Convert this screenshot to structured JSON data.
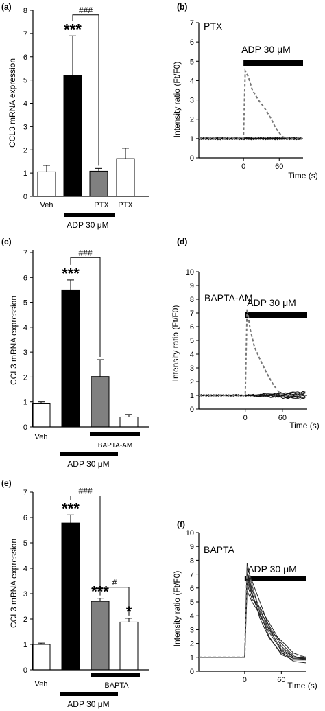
{
  "chart_data": [
    {
      "panel": "(a)",
      "type": "bar",
      "ylabel": "CCL3 mRNA expression",
      "ylim": [
        0,
        8
      ],
      "yticks": [
        0,
        1,
        2,
        3,
        4,
        5,
        6,
        7,
        8
      ],
      "bars": [
        {
          "value": 1.05,
          "error": 0.28,
          "fill": "#ffffff"
        },
        {
          "value": 5.2,
          "error": 1.7,
          "fill": "#000000",
          "sig": "***"
        },
        {
          "value": 1.08,
          "error": 0.12,
          "fill": "#808080"
        },
        {
          "value": 1.62,
          "error": 0.45,
          "fill": "#ffffff"
        }
      ],
      "category_labels": [
        {
          "text": "Veh",
          "bar": 0
        },
        {
          "text": "PTX",
          "bar": 2
        },
        {
          "text": "PTX",
          "bar": 3
        }
      ],
      "brackets": [
        {
          "from": 1,
          "to": 2,
          "label": "###",
          "y": 7.8
        }
      ],
      "condition_bars": [
        {
          "label": "ADP 30 μM",
          "from": 1,
          "to": 2
        }
      ]
    },
    {
      "panel": "(b)",
      "type": "line",
      "label": "PTX",
      "ylabel": "Intensity ratio (Ft/F0)",
      "xlabel": "Time (s)",
      "ylim": [
        0,
        7
      ],
      "xlim": [
        -75,
        100
      ],
      "yticks": [
        0,
        1,
        2,
        3,
        4,
        5,
        6,
        7
      ],
      "xticks": [
        0,
        60
      ],
      "stimulus": {
        "label": "ADP 30 μM",
        "start": 0,
        "end": 100
      },
      "dashed_control": [
        [
          -75,
          1.02
        ],
        [
          0,
          1.02
        ],
        [
          3,
          4.5
        ],
        [
          8,
          4.2
        ],
        [
          15,
          3.5
        ],
        [
          25,
          3.0
        ],
        [
          35,
          2.6
        ],
        [
          45,
          2.1
        ],
        [
          55,
          1.5
        ],
        [
          65,
          1.1
        ],
        [
          75,
          1.0
        ],
        [
          100,
          1.0
        ]
      ],
      "traces_baseline": 1.0,
      "trace_count": 8
    },
    {
      "panel": "(c)",
      "type": "bar",
      "ylabel": "CCL3 mRNA expression",
      "ylim": [
        0,
        7
      ],
      "yticks": [
        0,
        1,
        2,
        3,
        4,
        5,
        6,
        7
      ],
      "bars": [
        {
          "value": 0.95,
          "error": 0.05,
          "fill": "#ffffff"
        },
        {
          "value": 5.5,
          "error": 0.4,
          "fill": "#000000",
          "sig": "***"
        },
        {
          "value": 2.02,
          "error": 0.68,
          "fill": "#808080"
        },
        {
          "value": 0.4,
          "error": 0.1,
          "fill": "#ffffff"
        }
      ],
      "category_labels": [
        {
          "text": "Veh",
          "bar": 0
        }
      ],
      "brackets": [
        {
          "from": 1,
          "to": 2,
          "label": "###",
          "y": 6.8
        }
      ],
      "condition_bars": [
        {
          "label": "BAPTA-AM",
          "from": 2,
          "to": 3
        },
        {
          "label": "ADP 30 μM",
          "from": 1,
          "to": 2
        }
      ]
    },
    {
      "panel": "(d)",
      "type": "line",
      "label": "BAPTA-AM",
      "ylabel": "Intensity ratio (Ft/F0)",
      "xlabel": "Time (s)",
      "ylim": [
        0,
        10
      ],
      "xlim": [
        -75,
        100
      ],
      "yticks": [
        0,
        1,
        2,
        3,
        4,
        5,
        6,
        7,
        8,
        9,
        10
      ],
      "xticks": [
        0,
        60
      ],
      "stimulus": {
        "label": "ADP 30 μM",
        "start": 0,
        "end": 100
      },
      "dashed_control": [
        [
          -75,
          1.0
        ],
        [
          0,
          1.0
        ],
        [
          3,
          7.3
        ],
        [
          8,
          5.8
        ],
        [
          15,
          4.5
        ],
        [
          25,
          3.5
        ],
        [
          35,
          2.6
        ],
        [
          45,
          1.8
        ],
        [
          55,
          1.2
        ],
        [
          65,
          1.0
        ],
        [
          100,
          1.0
        ]
      ],
      "traces_baseline": 1.0,
      "trace_count": 8
    },
    {
      "panel": "(e)",
      "type": "bar",
      "ylabel": "CCL3 mRNA expression",
      "ylim": [
        0,
        7
      ],
      "yticks": [
        0,
        1,
        2,
        3,
        4,
        5,
        6,
        7
      ],
      "bars": [
        {
          "value": 1.0,
          "error": 0.05,
          "fill": "#ffffff"
        },
        {
          "value": 5.78,
          "error": 0.32,
          "fill": "#000000",
          "sig": "***"
        },
        {
          "value": 2.7,
          "error": 0.12,
          "fill": "#808080",
          "sig": "***"
        },
        {
          "value": 1.88,
          "error": 0.15,
          "fill": "#ffffff",
          "sig": "*"
        }
      ],
      "category_labels": [
        {
          "text": "Veh",
          "bar": 0
        }
      ],
      "brackets": [
        {
          "from": 1,
          "to": 2,
          "label": "###",
          "y": 6.85
        },
        {
          "from": 2,
          "to": 3,
          "label": "#",
          "y": 3.25
        }
      ],
      "condition_bars": [
        {
          "label": "BAPTA",
          "from": 2,
          "to": 3
        },
        {
          "label": "ADP 30 μM",
          "from": 1,
          "to": 2
        }
      ]
    },
    {
      "panel": "(f)",
      "type": "line",
      "label": "BAPTA",
      "ylabel": "Intensity ratio (Ft/F0)",
      "xlabel": "Time (s)",
      "ylim": [
        0,
        10
      ],
      "xlim": [
        -75,
        100
      ],
      "yticks": [
        0,
        1,
        2,
        3,
        4,
        5,
        6,
        7,
        8,
        9,
        10
      ],
      "xticks": [
        0,
        60
      ],
      "stimulus": {
        "label": "ADP 30 μM",
        "start": 0,
        "end": 100
      },
      "dashed_control": [
        [
          -75,
          1.0
        ],
        [
          0,
          1.0
        ],
        [
          4,
          7.5
        ],
        [
          10,
          6.5
        ],
        [
          20,
          5.0
        ],
        [
          30,
          3.8
        ],
        [
          40,
          2.9
        ],
        [
          50,
          2.2
        ],
        [
          60,
          1.7
        ],
        [
          75,
          1.3
        ],
        [
          100,
          1.0
        ]
      ],
      "response_traces": [
        [
          [
            -75,
            1.0
          ],
          [
            0,
            1.0
          ],
          [
            4,
            7.8
          ],
          [
            12,
            6.2
          ],
          [
            25,
            4.2
          ],
          [
            40,
            2.5
          ],
          [
            60,
            1.2
          ],
          [
            80,
            0.8
          ],
          [
            100,
            0.8
          ]
        ],
        [
          [
            -75,
            1.0
          ],
          [
            0,
            1.0
          ],
          [
            4,
            7.2
          ],
          [
            12,
            5.9
          ],
          [
            25,
            4.5
          ],
          [
            40,
            3.0
          ],
          [
            60,
            1.6
          ],
          [
            80,
            1.0
          ],
          [
            100,
            0.9
          ]
        ],
        [
          [
            -75,
            1.0
          ],
          [
            0,
            1.0
          ],
          [
            4,
            6.8
          ],
          [
            12,
            5.5
          ],
          [
            25,
            4.0
          ],
          [
            40,
            2.8
          ],
          [
            60,
            1.5
          ],
          [
            80,
            0.9
          ],
          [
            100,
            0.85
          ]
        ],
        [
          [
            -75,
            1.0
          ],
          [
            0,
            1.0
          ],
          [
            4,
            6.3
          ],
          [
            12,
            5.2
          ],
          [
            25,
            4.6
          ],
          [
            40,
            3.5
          ],
          [
            60,
            2.0
          ],
          [
            80,
            1.1
          ],
          [
            100,
            0.8
          ]
        ],
        [
          [
            -75,
            1.0
          ],
          [
            0,
            1.0
          ],
          [
            4,
            7.5
          ],
          [
            12,
            6.5
          ],
          [
            25,
            5.0
          ],
          [
            40,
            3.2
          ],
          [
            60,
            1.4
          ],
          [
            80,
            0.7
          ],
          [
            100,
            0.6
          ]
        ],
        [
          [
            -75,
            1.0
          ],
          [
            0,
            1.0
          ],
          [
            4,
            5.8
          ],
          [
            12,
            5.0
          ],
          [
            25,
            4.1
          ],
          [
            40,
            3.0
          ],
          [
            60,
            2.2
          ],
          [
            80,
            1.3
          ],
          [
            100,
            1.0
          ]
        ],
        [
          [
            -75,
            1.0
          ],
          [
            0,
            1.0
          ],
          [
            4,
            7.0
          ],
          [
            12,
            5.7
          ],
          [
            25,
            3.8
          ],
          [
            40,
            2.4
          ],
          [
            60,
            1.3
          ],
          [
            80,
            0.9
          ],
          [
            100,
            0.9
          ]
        ],
        [
          [
            -75,
            1.0
          ],
          [
            0,
            1.0
          ],
          [
            4,
            6.5
          ],
          [
            12,
            5.5
          ],
          [
            25,
            4.3
          ],
          [
            40,
            3.3
          ],
          [
            60,
            1.8
          ],
          [
            80,
            1.0
          ],
          [
            100,
            0.95
          ]
        ]
      ]
    }
  ]
}
